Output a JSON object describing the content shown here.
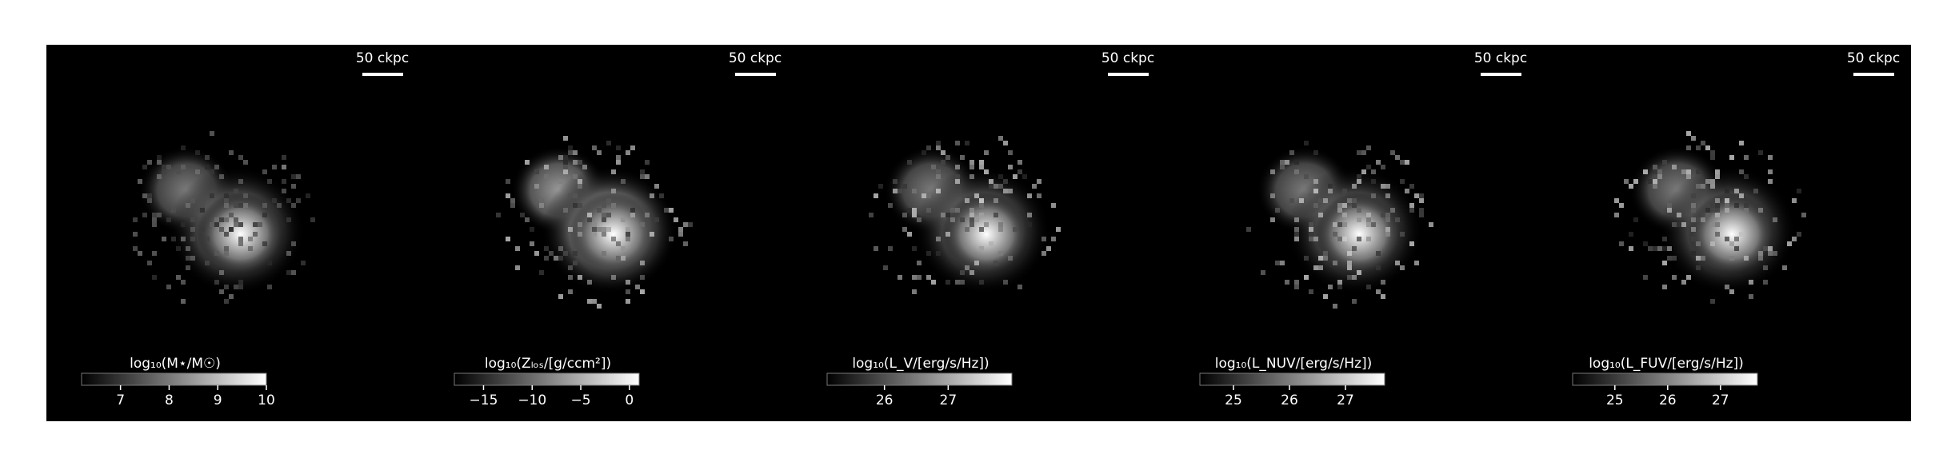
{
  "panels": [
    {
      "scale_bar": "50 ckpc",
      "colorbar": {
        "label": "log₁₀(M⋆/M☉)",
        "range": [
          6.2,
          10
        ],
        "ticks": [
          7,
          8,
          9,
          10
        ]
      }
    },
    {
      "scale_bar": "50 ckpc",
      "colorbar": {
        "label": "log₁₀(Zₗₒₛ/[g/ccm²])",
        "range": [
          -18,
          1
        ],
        "ticks": [
          {
            "value": -15,
            "label": "−15"
          },
          {
            "value": -10,
            "label": "−10"
          },
          {
            "value": -5,
            "label": "−5"
          },
          0
        ]
      }
    },
    {
      "scale_bar": "50 ckpc",
      "colorbar": {
        "label": "log₁₀(L_V/[erg/s/Hz])",
        "range": [
          25.1,
          28
        ],
        "ticks": [
          26,
          27
        ]
      }
    },
    {
      "scale_bar": "50 ckpc",
      "colorbar": {
        "label": "log₁₀(L_NUV/[erg/s/Hz])",
        "range": [
          24.4,
          27.7
        ],
        "ticks": [
          25,
          26,
          27
        ]
      }
    },
    {
      "scale_bar": "50 ckpc",
      "colorbar": {
        "label": "log₁₀(L_FUV/[erg/s/Hz])",
        "range": [
          24.2,
          27.7
        ],
        "ticks": [
          25,
          26,
          27
        ]
      }
    }
  ]
}
